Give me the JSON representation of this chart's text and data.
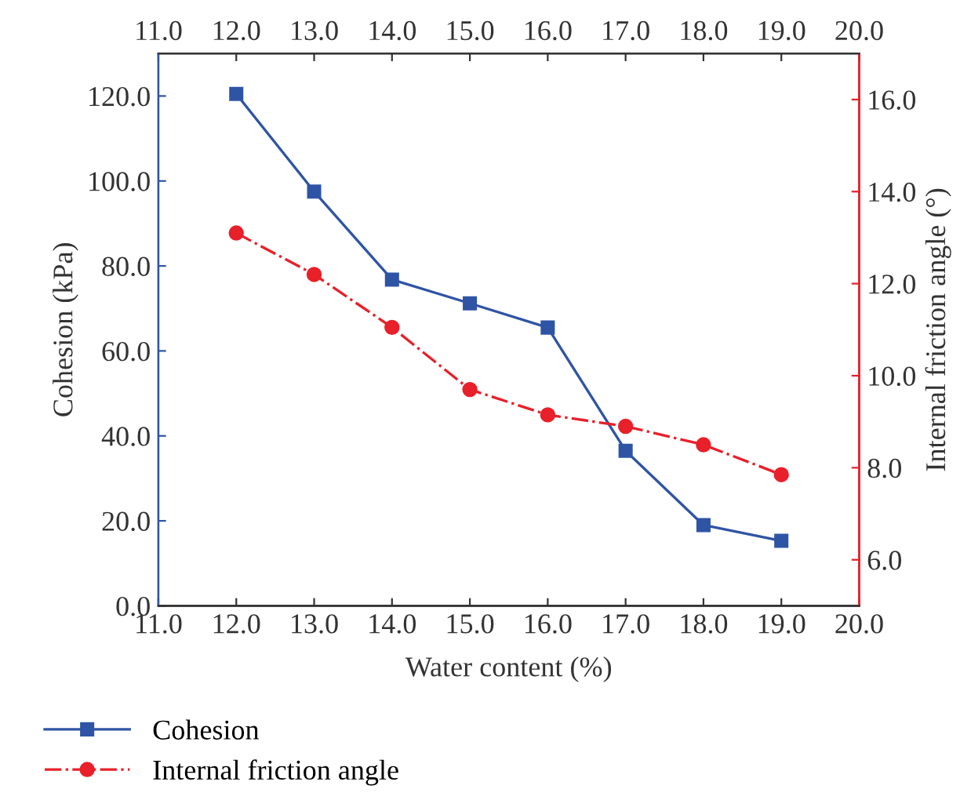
{
  "chart_data": {
    "type": "line",
    "xlabel": "Water content (%)",
    "ylabel": "Cohesion (kPa)",
    "y2label": "Internal friction angle (°)",
    "x": [
      12,
      13,
      14,
      15,
      16,
      17,
      18,
      19
    ],
    "series": [
      {
        "name": "Cohesion",
        "color": "#2f54a5",
        "values": [
          120.5,
          97.5,
          76.8,
          71.2,
          65.5,
          36.5,
          19.0,
          15.3
        ],
        "marker": "square",
        "line_style": "solid"
      },
      {
        "name": "Internal friction angle",
        "color": "#e8202a",
        "values": [
          13.1,
          12.2,
          11.05,
          9.7,
          9.15,
          8.9,
          8.5,
          7.85
        ],
        "marker": "circle",
        "line_style": "dashdot",
        "axis": "y2"
      }
    ],
    "xlim": [
      11,
      20
    ],
    "xticks": [
      {
        "value": 11,
        "label": "11.0"
      },
      {
        "value": 12,
        "label": "12.0"
      },
      {
        "value": 13,
        "label": "13.0"
      },
      {
        "value": 14,
        "label": "14.0"
      },
      {
        "value": 15,
        "label": "15.0"
      },
      {
        "value": 16,
        "label": "16.0"
      },
      {
        "value": 17,
        "label": "17.0"
      },
      {
        "value": 18,
        "label": "18.0"
      },
      {
        "value": 19,
        "label": "19.0"
      },
      {
        "value": 20,
        "label": "20.0"
      }
    ],
    "x2lim": [
      11,
      20
    ],
    "x2ticks": [
      {
        "value": 11,
        "label": "11.0"
      },
      {
        "value": 12,
        "label": "12.0"
      },
      {
        "value": 13,
        "label": "13.0"
      },
      {
        "value": 14,
        "label": "14.0"
      },
      {
        "value": 15,
        "label": "15.0"
      },
      {
        "value": 16,
        "label": "16.0"
      },
      {
        "value": 17,
        "label": "17.0"
      },
      {
        "value": 18,
        "label": "18.0"
      },
      {
        "value": 19,
        "label": "19.0"
      },
      {
        "value": 20,
        "label": "20.0"
      }
    ],
    "ylim": [
      0,
      130
    ],
    "yticks": [
      {
        "value": 0,
        "label": "0.0"
      },
      {
        "value": 20,
        "label": "20.0"
      },
      {
        "value": 40,
        "label": "40.0"
      },
      {
        "value": 60,
        "label": "60.0"
      },
      {
        "value": 80,
        "label": "80.0"
      },
      {
        "value": 100,
        "label": "100.0"
      },
      {
        "value": 120,
        "label": "120.0"
      }
    ],
    "y2lim": [
      5,
      17
    ],
    "y2ticks": [
      {
        "value": 6,
        "label": "6.0"
      },
      {
        "value": 8,
        "label": "8.0"
      },
      {
        "value": 10,
        "label": "10.0"
      },
      {
        "value": 12,
        "label": "12.0"
      },
      {
        "value": 14,
        "label": "14.0"
      },
      {
        "value": 16,
        "label": "16.0"
      }
    ],
    "grid": false,
    "legend": "bottom left"
  }
}
